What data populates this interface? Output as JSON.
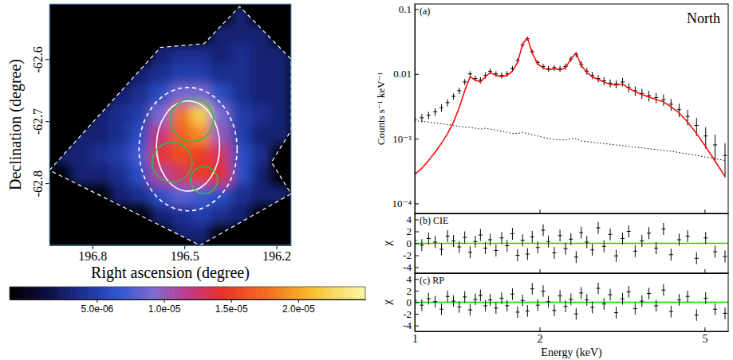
{
  "chart_data": [
    {
      "type": "heatmap",
      "xlabel": "Right ascension (degree)",
      "ylabel": "Declination (degree)",
      "xlim": [
        196.94,
        196.152
      ],
      "ylim": [
        -62.9,
        -62.511
      ],
      "xticks": [
        196.8,
        196.5,
        196.2
      ],
      "yticks": [
        -62.8,
        -62.7,
        -62.6
      ],
      "cells": [
        [
          null,
          null,
          null,
          null,
          null,
          null,
          null,
          null,
          null,
          3e-06,
          null,
          null
        ],
        [
          null,
          null,
          null,
          null,
          null,
          null,
          null,
          null,
          3e-06,
          3e-06,
          3e-06,
          null
        ],
        [
          null,
          null,
          null,
          null,
          null,
          3e-06,
          4e-06,
          4e-06,
          3e-06,
          4e-06,
          3e-06,
          3e-06
        ],
        [
          null,
          null,
          null,
          null,
          3e-06,
          4e-06,
          5e-06,
          5e-06,
          4e-06,
          4e-06,
          3e-06,
          3e-06
        ],
        [
          null,
          null,
          null,
          3e-06,
          4e-06,
          6e-06,
          9e-06,
          9e-06,
          6e-06,
          4e-06,
          3e-06,
          3e-06
        ],
        [
          null,
          null,
          3e-06,
          4e-06,
          5e-06,
          9e-06,
          1.8e-05,
          2.2e-05,
          9e-06,
          5e-06,
          4e-06,
          3e-06
        ],
        [
          null,
          3e-06,
          3e-06,
          4e-06,
          6e-06,
          1.2e-05,
          1.7e-05,
          1.9e-05,
          1e-05,
          5e-06,
          3e-06,
          3e-06
        ],
        [
          3e-06,
          3e-06,
          4e-06,
          5e-06,
          7e-06,
          1.4e-05,
          1.6e-05,
          1.5e-05,
          1.3e-05,
          6e-06,
          4e-06,
          null
        ],
        [
          null,
          3e-06,
          3e-06,
          4e-06,
          6e-06,
          1.1e-05,
          1.3e-05,
          1.5e-05,
          1.4e-05,
          6e-06,
          3e-06,
          null
        ],
        [
          null,
          null,
          null,
          3e-06,
          4e-06,
          6e-06,
          8e-06,
          7e-06,
          6e-06,
          4e-06,
          3e-06,
          3e-06
        ],
        [
          null,
          null,
          null,
          null,
          null,
          3e-06,
          4e-06,
          5e-06,
          4e-06,
          3e-06,
          null,
          null
        ],
        [
          null,
          null,
          null,
          null,
          null,
          null,
          3e-06,
          3e-06,
          null,
          null,
          null,
          null
        ]
      ],
      "colorbar": {
        "range": [
          -1.5e-06,
          2.5e-05
        ],
        "ticks": [
          {
            "value": 5e-06,
            "label": "5.0e-06"
          },
          {
            "value": 1e-05,
            "label": "1.0e-05"
          },
          {
            "value": 1.5e-05,
            "label": "1.5e-05"
          },
          {
            "value": 2e-05,
            "label": "2.0e-05"
          }
        ]
      },
      "fov": {
        "ra": [
          196.94,
          196.578,
          196.436,
          196.32,
          196.152,
          196.152,
          196.216,
          196.152,
          196.449
        ],
        "dec": [
          -62.779,
          -62.581,
          -62.575,
          -62.515,
          -62.6,
          -62.715,
          -62.766,
          -62.817,
          -62.9
        ],
        "color": "#ffffff",
        "line_style": "dashed"
      },
      "regions": [
        {
          "shape": "ellipse",
          "ra": 196.488,
          "dec": -62.74,
          "r_ra": 0.103,
          "r_dec": 0.0726,
          "color": "#ffffff",
          "line_style": "solid"
        },
        {
          "shape": "ellipse",
          "ra": 196.488,
          "dec": -62.745,
          "r_ra": 0.16,
          "r_dec": 0.0994,
          "color": "#ffffff",
          "line_style": "dashed"
        },
        {
          "shape": "circle",
          "ra": 196.475,
          "dec": -62.698,
          "r": 0.07,
          "color": "#3cb44b",
          "line_style": "solid"
        },
        {
          "shape": "circle",
          "ra": 196.54,
          "dec": -62.766,
          "r": 0.065,
          "color": "#3cb44b",
          "line_style": "solid"
        },
        {
          "shape": "circle",
          "ra": 196.436,
          "dec": -62.795,
          "r": 0.044,
          "color": "#3cb44b",
          "line_style": "solid"
        }
      ]
    },
    {
      "type": "spectrum",
      "xlabel": "Energy (keV)",
      "log": "x",
      "xlim": [
        1,
        5.7
      ],
      "xticks": [
        1,
        2,
        5
      ],
      "x": [
        1.0,
        1.04,
        1.08,
        1.12,
        1.16,
        1.2,
        1.24,
        1.28,
        1.32,
        1.36,
        1.4,
        1.44,
        1.48,
        1.52,
        1.57,
        1.62,
        1.67,
        1.72,
        1.77,
        1.82,
        1.87,
        1.92,
        1.98,
        2.04,
        2.1,
        2.17,
        2.24,
        2.31,
        2.38,
        2.45,
        2.52,
        2.6,
        2.68,
        2.77,
        2.86,
        2.96,
        3.06,
        3.17,
        3.28,
        3.4,
        3.53,
        3.67,
        3.82,
        3.98,
        4.15,
        4.34,
        4.55,
        4.78,
        5.03,
        5.3,
        5.6
      ],
      "panels": [
        {
          "label": "(a)",
          "annotation": "North",
          "ylabel": "Counts s⁻¹ keV⁻¹",
          "log": "y",
          "tick_labels": "y",
          "ylim": [
            7e-05,
            0.12
          ],
          "yticks": [
            {
              "value": 0.0001,
              "label": "10⁻⁴"
            },
            {
              "value": 0.001,
              "label": "10⁻³"
            },
            0.01,
            0.1
          ],
          "series": [
            {
              "type": "scatter",
              "marker": "cross",
              "color": "#000000",
              "values": [
                0.002,
                0.0021,
                0.0023,
                0.0026,
                0.003,
                0.0036,
                0.0045,
                0.0055,
                0.0075,
                0.01,
                0.0085,
                0.008,
                0.0095,
                0.011,
                0.01,
                0.0095,
                0.01,
                0.012,
                0.016,
                0.028,
                0.035,
                0.022,
                0.015,
                0.013,
                0.012,
                0.0125,
                0.012,
                0.013,
                0.017,
                0.02,
                0.014,
                0.011,
                0.0095,
                0.0085,
                0.0078,
                0.0072,
                0.007,
                0.0075,
                0.0062,
                0.0055,
                0.005,
                0.0046,
                0.0043,
                0.004,
                0.0034,
                0.0028,
                0.0022,
                0.0016,
                0.0011,
                0.0008,
                0.00055
              ],
              "errors": [
                0.0003,
                0.0003,
                0.0003,
                0.00035,
                0.0004,
                0.00045,
                0.0005,
                0.0006,
                0.0008,
                0.001,
                0.0009,
                0.0009,
                0.001,
                0.0011,
                0.001,
                0.001,
                0.001,
                0.0012,
                0.0015,
                0.0022,
                0.0026,
                0.0019,
                0.0014,
                0.0013,
                0.0012,
                0.0013,
                0.0013,
                0.0014,
                0.0017,
                0.002,
                0.0015,
                0.0013,
                0.0012,
                0.0011,
                0.0011,
                0.001,
                0.001,
                0.0011,
                0.001,
                0.0009,
                0.0009,
                0.00085,
                0.0008,
                0.0008,
                0.0007,
                0.00065,
                0.0006,
                0.0005,
                0.0004,
                0.00035,
                0.0003
              ]
            },
            {
              "type": "line",
              "line_style": "solid",
              "color": "#ff0000",
              "values": [
                0.00028,
                0.00035,
                0.00046,
                0.00062,
                0.00085,
                0.0012,
                0.0018,
                0.003,
                0.0055,
                0.009,
                0.008,
                0.0075,
                0.009,
                0.0105,
                0.0095,
                0.009,
                0.0095,
                0.011,
                0.015,
                0.029,
                0.036,
                0.021,
                0.014,
                0.0125,
                0.0115,
                0.012,
                0.0115,
                0.0125,
                0.017,
                0.021,
                0.0135,
                0.0105,
                0.009,
                0.0082,
                0.0075,
                0.0069,
                0.0067,
                0.007,
                0.006,
                0.0053,
                0.0048,
                0.0044,
                0.004,
                0.0037,
                0.0031,
                0.0025,
                0.0018,
                0.0012,
                0.00075,
                0.00045,
                0.00026
              ]
            },
            {
              "type": "line",
              "line_style": "dotted",
              "color": "#000000",
              "values": [
                0.0019,
                0.00185,
                0.0018,
                0.00175,
                0.0017,
                0.00165,
                0.0016,
                0.00155,
                0.0015,
                0.0015,
                0.00145,
                0.0014,
                0.00145,
                0.0014,
                0.00135,
                0.0013,
                0.00125,
                0.0012,
                0.0012,
                0.00125,
                0.0012,
                0.00115,
                0.0011,
                0.00105,
                0.001,
                0.00098,
                0.00096,
                0.00095,
                0.001,
                0.001,
                0.00092,
                0.0009,
                0.00088,
                0.00086,
                0.00084,
                0.00082,
                0.0008,
                0.00078,
                0.00076,
                0.00074,
                0.00072,
                0.0007,
                0.00068,
                0.00066,
                0.00064,
                0.00061,
                0.00058,
                0.00055,
                0.00052,
                0.00049,
                0.00046
              ]
            }
          ]
        },
        {
          "label": "(b) CIE",
          "ylabel": "χ",
          "tick_labels": "y",
          "ylim": [
            -5,
            5
          ],
          "yticks": [
            -4,
            -2,
            0,
            2,
            4
          ],
          "hlines": [
            {
              "value": 0,
              "color": "#00dd00"
            }
          ],
          "series": [
            {
              "type": "scatter",
              "marker": "cross",
              "color": "#000000",
              "values": [
                0.5,
                -0.3,
                0.8,
                0.2,
                -1.0,
                1.2,
                0.4,
                -0.6,
                1.0,
                -1.5,
                0.3,
                1.4,
                -0.8,
                0.6,
                -1.2,
                0.9,
                -0.4,
                1.6,
                -2.0,
                0.5,
                -1.8,
                1.1,
                -0.7,
                2.2,
                0.3,
                -1.6,
                1.3,
                -0.9,
                0.7,
                -2.3,
                1.8,
                0.2,
                -1.1,
                2.6,
                -0.5,
                1.5,
                -2.1,
                0.8,
                2.0,
                -1.3,
                0.4,
                1.7,
                -0.8,
                2.4,
                -1.9,
                0.6,
                1.2,
                -2.5,
                0.9,
                -1.4,
                -2.2
              ],
              "errors": [
                1,
                1,
                1,
                1,
                1,
                1,
                1,
                1,
                1,
                1,
                1,
                1,
                1,
                1,
                1,
                1,
                1,
                1,
                1,
                1,
                1,
                1,
                1,
                1,
                1,
                1,
                1,
                1,
                1,
                1,
                1,
                1,
                1,
                1,
                1,
                1,
                1,
                1,
                1,
                1,
                1,
                1,
                1,
                1,
                1,
                1,
                1,
                1,
                1,
                1,
                1
              ]
            }
          ]
        },
        {
          "label": "(c) RP",
          "ylabel": "χ",
          "ylim": [
            -5,
            5
          ],
          "yticks": [
            -4,
            -2,
            0,
            2,
            4
          ],
          "hlines": [
            {
              "value": 0,
              "color": "#00dd00"
            }
          ],
          "series": [
            {
              "type": "scatter",
              "marker": "cross",
              "color": "#000000",
              "values": [
                0.3,
                -0.5,
                0.6,
                0.1,
                -1.2,
                1.0,
                0.2,
                -0.8,
                0.9,
                -1.3,
                0.5,
                1.2,
                -0.6,
                0.4,
                -1.0,
                0.7,
                -0.6,
                1.4,
                -1.7,
                0.3,
                -1.5,
                2.3,
                -0.5,
                1.9,
                0.1,
                -1.4,
                1.1,
                -0.7,
                0.5,
                -2.0,
                1.6,
                0.4,
                -0.9,
                2.4,
                -0.3,
                1.3,
                -1.8,
                0.6,
                1.8,
                -1.1,
                0.2,
                1.5,
                -0.6,
                2.1,
                -1.6,
                0.4,
                1.0,
                -2.2,
                0.7,
                -1.2,
                -1.9
              ],
              "errors": [
                1,
                1,
                1,
                1,
                1,
                1,
                1,
                1,
                1,
                1,
                1,
                1,
                1,
                1,
                1,
                1,
                1,
                1,
                1,
                1,
                1,
                1,
                1,
                1,
                1,
                1,
                1,
                1,
                1,
                1,
                1,
                1,
                1,
                1,
                1,
                1,
                1,
                1,
                1,
                1,
                1,
                1,
                1,
                1,
                1,
                1,
                1,
                1,
                1,
                1,
                1
              ]
            }
          ]
        }
      ]
    }
  ]
}
